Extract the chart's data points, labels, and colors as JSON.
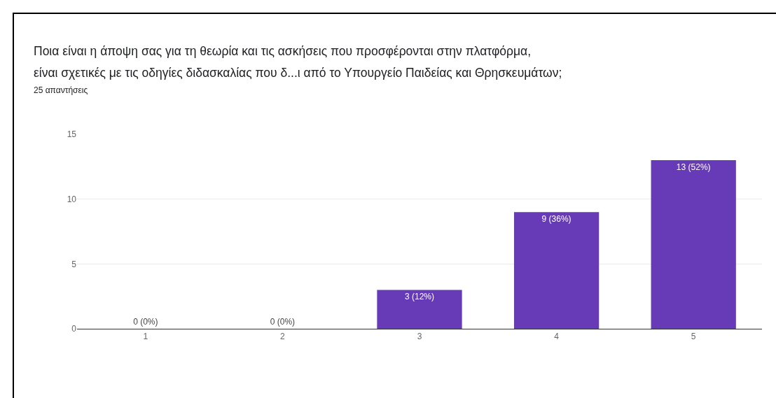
{
  "chart_data": {
    "type": "bar",
    "title": "Ποια είναι η άποψη σας για τη θεωρία και τις ασκήσεις που προσφέρονται στην πλατφόρμα,\nείναι σχετικές με τις οδηγίες διδασκαλίας που δ...ι από το Υπουργείο Παιδείας και Θρησκευμάτων;",
    "subtitle": "25 απαντήσεις",
    "categories": [
      "1",
      "2",
      "3",
      "4",
      "5"
    ],
    "values": [
      0,
      0,
      3,
      9,
      13
    ],
    "value_labels": [
      "0 (0%)",
      "0 (0%)",
      "3 (12%)",
      "9 (36%)",
      "13 (52%)"
    ],
    "color": "#673ab7",
    "ylim": [
      0,
      15
    ],
    "yticks": [
      0,
      5,
      10,
      15
    ],
    "grid": "y"
  }
}
